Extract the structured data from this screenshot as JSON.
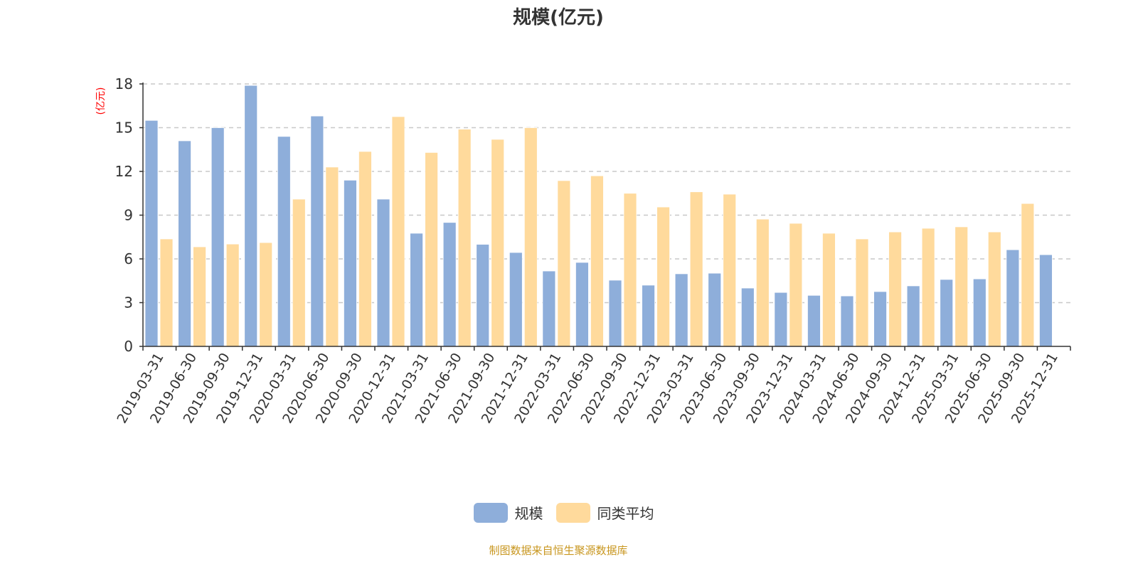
{
  "chart_data": {
    "type": "bar",
    "title": "规模(亿元)",
    "ylabel": "(亿元)",
    "xlabel": "",
    "ylim": [
      0,
      18
    ],
    "yticks": [
      0,
      3,
      6,
      9,
      12,
      15,
      18
    ],
    "grid": true,
    "legend_position": "bottom",
    "categories": [
      "2019-03-31",
      "2019-06-30",
      "2019-09-30",
      "2019-12-31",
      "2020-03-31",
      "2020-06-30",
      "2020-09-30",
      "2020-12-31",
      "2021-03-31",
      "2021-06-30",
      "2021-09-30",
      "2021-12-31",
      "2022-03-31",
      "2022-06-30",
      "2022-09-30",
      "2022-12-31",
      "2023-03-31",
      "2023-06-30",
      "2023-09-30",
      "2023-12-31",
      "2024-03-31",
      "2024-06-30",
      "2024-09-30",
      "2024-12-31",
      "2025-03-31",
      "2025-06-30",
      "2025-09-30",
      "2025-12-31"
    ],
    "series": [
      {
        "name": "规模",
        "color": "#8EAEDA",
        "values": [
          15.5,
          14.1,
          15.0,
          17.9,
          14.4,
          15.8,
          11.4,
          10.1,
          7.76,
          8.5,
          7.0,
          6.44,
          5.17,
          5.76,
          4.54,
          4.2,
          4.98,
          5.02,
          4.0,
          3.7,
          3.5,
          3.46,
          3.76,
          4.15,
          4.59,
          4.63,
          6.63,
          6.29
        ]
      },
      {
        "name": "同类平均",
        "color": "#FFDA9C",
        "values": [
          7.37,
          6.83,
          7.02,
          7.12,
          10.1,
          12.3,
          13.37,
          15.76,
          13.3,
          14.9,
          14.2,
          15.0,
          11.37,
          11.7,
          10.5,
          9.56,
          10.6,
          10.44,
          8.73,
          8.44,
          7.76,
          7.37,
          7.85,
          8.1,
          8.2,
          7.85,
          9.8,
          null
        ]
      }
    ]
  },
  "source": {
    "text": "制图数据来自恒生聚源数据库",
    "color": "#C8961E"
  }
}
